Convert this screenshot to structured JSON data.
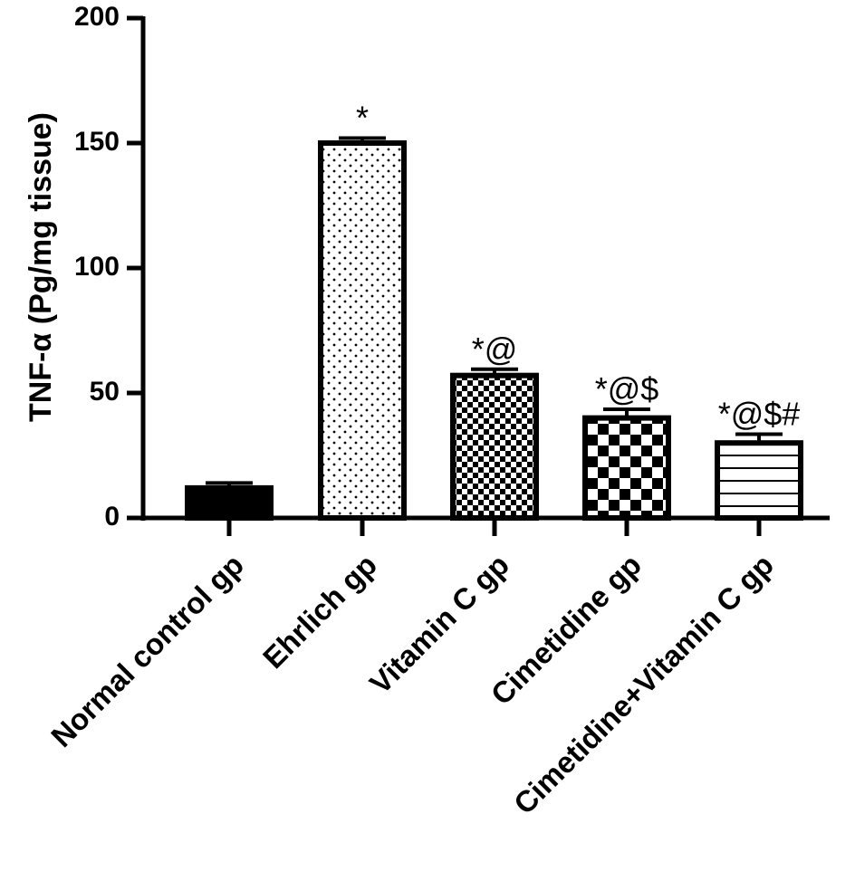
{
  "chart_data": {
    "type": "bar",
    "ylabel": "TNF-α (Pg/mg tissue)",
    "ylim": [
      0,
      200
    ],
    "yticks": [
      0,
      50,
      100,
      150,
      200
    ],
    "grid": false,
    "categories": [
      "Normal control gp",
      "Ehrlich gp",
      "Vitamin C gp",
      "Cimetidine gp",
      "Cimetidine+Vitamin C gp"
    ],
    "values": [
      12,
      150,
      57,
      40,
      30
    ],
    "errors": [
      2,
      2,
      2.5,
      3.5,
      3.5
    ],
    "annotations": [
      "",
      "*",
      "*@",
      "*@$",
      "*@$#"
    ],
    "fills": [
      "solid",
      "fine-dots",
      "small-checker",
      "large-checker",
      "horizontal-lines"
    ]
  }
}
